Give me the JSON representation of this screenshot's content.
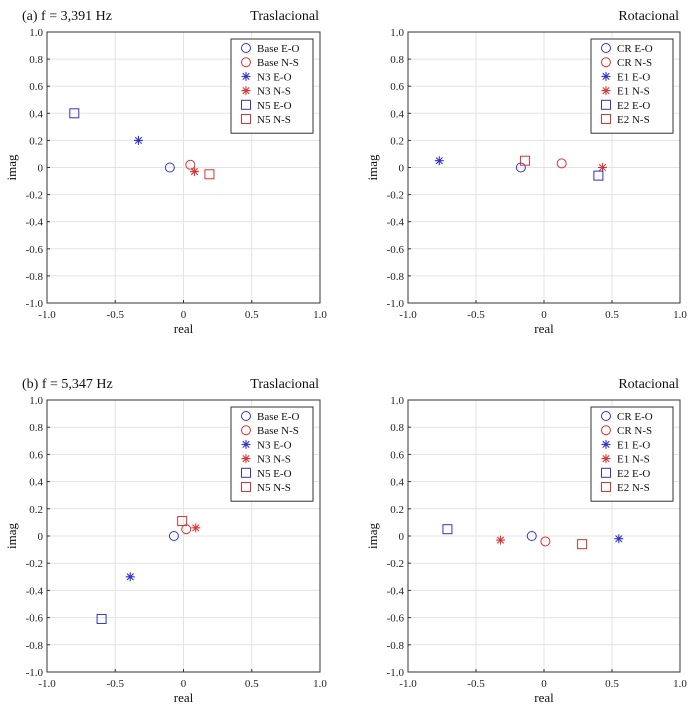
{
  "chart_data": [
    {
      "type": "scatter",
      "panel_label": "(a) f = 3,391 Hz",
      "title": "Traslacional",
      "xlabel": "real",
      "ylabel": "imag",
      "xlim": [
        -1.0,
        1.0
      ],
      "ylim": [
        -1.0,
        1.0
      ],
      "xticks": [
        "-1.0",
        "-0.5",
        "0",
        "0.5",
        "1.0"
      ],
      "yticks": [
        "1.0",
        "0.8",
        "0.6",
        "0.4",
        "0.2",
        "0",
        "-0.2",
        "-0.4",
        "-0.6",
        "-0.8",
        "-1.0"
      ],
      "grid": true,
      "legend_position": "top-right",
      "series": [
        {
          "name": "Base E-O",
          "marker": "circle",
          "color": "#3333cc",
          "x": [
            -0.1
          ],
          "y": [
            0.0
          ]
        },
        {
          "name": "Base N-S",
          "marker": "circle",
          "color": "#dd3333",
          "x": [
            0.05
          ],
          "y": [
            0.02
          ]
        },
        {
          "name": "N3 E-O",
          "marker": "asterisk",
          "color": "#3333cc",
          "x": [
            -0.33
          ],
          "y": [
            0.2
          ]
        },
        {
          "name": "N3 N-S",
          "marker": "asterisk",
          "color": "#dd3333",
          "x": [
            0.08
          ],
          "y": [
            -0.03
          ]
        },
        {
          "name": "N5 E-O",
          "marker": "square",
          "color": "#3333cc",
          "x": [
            -0.8
          ],
          "y": [
            0.4
          ]
        },
        {
          "name": "N5 N-S",
          "marker": "square",
          "color": "#dd3333",
          "x": [
            0.19
          ],
          "y": [
            -0.05
          ]
        }
      ]
    },
    {
      "type": "scatter",
      "panel_label": "",
      "title": "Rotacional",
      "xlabel": "real",
      "ylabel": "imag",
      "xlim": [
        -1.0,
        1.0
      ],
      "ylim": [
        -1.0,
        1.0
      ],
      "xticks": [
        "-1.0",
        "-0.5",
        "0",
        "0.5",
        "1.0"
      ],
      "yticks": [
        "1.0",
        "0.8",
        "0.6",
        "0.4",
        "0.2",
        "0",
        "-0.2",
        "-0.4",
        "-0.6",
        "-0.8",
        "-1.0"
      ],
      "grid": true,
      "legend_position": "top-right",
      "series": [
        {
          "name": "CR E-O",
          "marker": "circle",
          "color": "#3333cc",
          "x": [
            -0.17
          ],
          "y": [
            0.0
          ]
        },
        {
          "name": "CR N-S",
          "marker": "circle",
          "color": "#dd3333",
          "x": [
            0.13
          ],
          "y": [
            0.03
          ]
        },
        {
          "name": "E1 E-O",
          "marker": "asterisk",
          "color": "#3333cc",
          "x": [
            -0.77
          ],
          "y": [
            0.05
          ]
        },
        {
          "name": "E1 N-S",
          "marker": "asterisk",
          "color": "#dd3333",
          "x": [
            0.43
          ],
          "y": [
            0.0
          ]
        },
        {
          "name": "E2 E-O",
          "marker": "square",
          "color": "#3333cc",
          "x": [
            0.4
          ],
          "y": [
            -0.06
          ]
        },
        {
          "name": "E2 N-S",
          "marker": "square",
          "color": "#dd3333",
          "x": [
            -0.14
          ],
          "y": [
            0.05
          ]
        }
      ]
    },
    {
      "type": "scatter",
      "panel_label": "(b) f = 5,347 Hz",
      "title": "Traslacional",
      "xlabel": "real",
      "ylabel": "imag",
      "xlim": [
        -1.0,
        1.0
      ],
      "ylim": [
        -1.0,
        1.0
      ],
      "xticks": [
        "-1.0",
        "-0.5",
        "0",
        "0.5",
        "1.0"
      ],
      "yticks": [
        "1.0",
        "0.8",
        "0.6",
        "0.4",
        "0.2",
        "0",
        "-0.2",
        "-0.4",
        "-0.6",
        "-0.8",
        "-1.0"
      ],
      "grid": true,
      "legend_position": "top-right",
      "series": [
        {
          "name": "Base E-O",
          "marker": "circle",
          "color": "#3333cc",
          "x": [
            -0.07
          ],
          "y": [
            0.0
          ]
        },
        {
          "name": "Base N-S",
          "marker": "circle",
          "color": "#dd3333",
          "x": [
            0.02
          ],
          "y": [
            0.05
          ]
        },
        {
          "name": "N3 E-O",
          "marker": "asterisk",
          "color": "#3333cc",
          "x": [
            -0.39
          ],
          "y": [
            -0.3
          ]
        },
        {
          "name": "N3 N-S",
          "marker": "asterisk",
          "color": "#dd3333",
          "x": [
            0.09
          ],
          "y": [
            0.06
          ]
        },
        {
          "name": "N5 E-O",
          "marker": "square",
          "color": "#3333cc",
          "x": [
            -0.6
          ],
          "y": [
            -0.61
          ]
        },
        {
          "name": "N5 N-S",
          "marker": "square",
          "color": "#dd3333",
          "x": [
            -0.01
          ],
          "y": [
            0.11
          ]
        }
      ]
    },
    {
      "type": "scatter",
      "panel_label": "",
      "title": "Rotacional",
      "xlabel": "real",
      "ylabel": "imag",
      "xlim": [
        -1.0,
        1.0
      ],
      "ylim": [
        -1.0,
        1.0
      ],
      "xticks": [
        "-1.0",
        "-0.5",
        "0",
        "0.5",
        "1.0"
      ],
      "yticks": [
        "1.0",
        "0.8",
        "0.6",
        "0.4",
        "0.2",
        "0",
        "-0.2",
        "-0.4",
        "-0.6",
        "-0.8",
        "-1.0"
      ],
      "grid": true,
      "legend_position": "top-right",
      "series": [
        {
          "name": "CR E-O",
          "marker": "circle",
          "color": "#3333cc",
          "x": [
            -0.09
          ],
          "y": [
            0.0
          ]
        },
        {
          "name": "CR N-S",
          "marker": "circle",
          "color": "#dd3333",
          "x": [
            0.01
          ],
          "y": [
            -0.04
          ]
        },
        {
          "name": "E1 E-O",
          "marker": "asterisk",
          "color": "#3333cc",
          "x": [
            0.55
          ],
          "y": [
            -0.02
          ]
        },
        {
          "name": "E1 N-S",
          "marker": "asterisk",
          "color": "#dd3333",
          "x": [
            -0.32
          ],
          "y": [
            -0.03
          ]
        },
        {
          "name": "E2 E-O",
          "marker": "square",
          "color": "#3333cc",
          "x": [
            -0.71
          ],
          "y": [
            0.05
          ]
        },
        {
          "name": "E2 N-S",
          "marker": "square",
          "color": "#dd3333",
          "x": [
            0.28
          ],
          "y": [
            -0.06
          ]
        }
      ]
    }
  ]
}
